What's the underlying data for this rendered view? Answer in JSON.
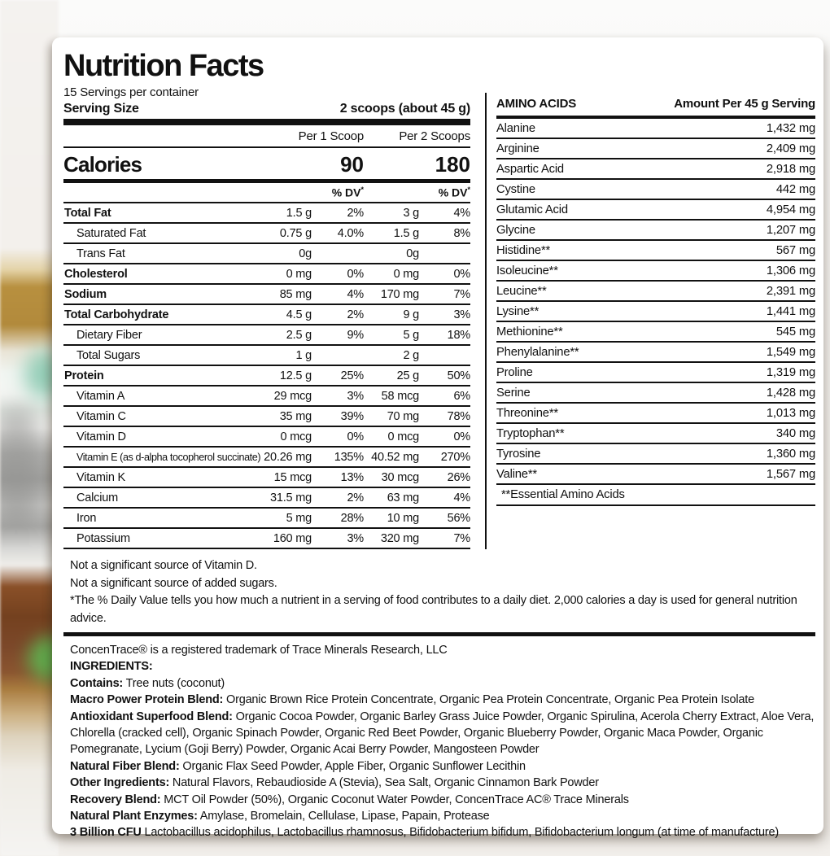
{
  "palette": {
    "card_bg": "#ffffff",
    "rule_color": "#111111",
    "text_color": "#111111",
    "bg_gold": "#b8903f",
    "bg_brown": "#7c482a",
    "bg_leaf": "#5fae4e"
  },
  "label": {
    "title": "Nutrition Facts",
    "servings_per_container": "15 Servings per container",
    "serving_size_label": "Serving Size",
    "serving_size_value": "2 scoops (about 45 g)",
    "col1_header": "Per 1 Scoop",
    "col2_header": "Per 2 Scoops",
    "calories_label": "Calories",
    "calories_per_1_scoop": "90",
    "calories_per_2_scoops": "180",
    "dv_header": "% DV",
    "dv_star": "*",
    "nutrients": [
      {
        "name": "Total Fat",
        "bold": true,
        "indent": false,
        "a1": "1.5 g",
        "dv1": "2%",
        "a2": "3 g",
        "dv2": "4%"
      },
      {
        "name": "Saturated Fat",
        "bold": false,
        "indent": true,
        "a1": "0.75 g",
        "dv1": "4.0%",
        "a2": "1.5 g",
        "dv2": "8%"
      },
      {
        "name": "Trans Fat",
        "bold": false,
        "indent": true,
        "a1": "0g",
        "dv1": "",
        "a2": "0g",
        "dv2": ""
      },
      {
        "name": "Cholesterol",
        "bold": true,
        "indent": false,
        "a1": "0 mg",
        "dv1": "0%",
        "a2": "0 mg",
        "dv2": "0%"
      },
      {
        "name": "Sodium",
        "bold": true,
        "indent": false,
        "a1": "85 mg",
        "dv1": "4%",
        "a2": "170 mg",
        "dv2": "7%"
      },
      {
        "name": "Total Carbohydrate",
        "bold": true,
        "indent": false,
        "a1": "4.5 g",
        "dv1": "2%",
        "a2": "9 g",
        "dv2": "3%"
      },
      {
        "name": "Dietary Fiber",
        "bold": false,
        "indent": true,
        "a1": "2.5 g",
        "dv1": "9%",
        "a2": "5 g",
        "dv2": "18%"
      },
      {
        "name": "Total Sugars",
        "bold": false,
        "indent": true,
        "a1": "1 g",
        "dv1": "",
        "a2": "2 g",
        "dv2": ""
      },
      {
        "name": "Protein",
        "bold": true,
        "indent": false,
        "a1": "12.5 g",
        "dv1": "25%",
        "a2": "25 g",
        "dv2": "50%"
      },
      {
        "name": "Vitamin A",
        "bold": false,
        "indent": true,
        "a1": "29 mcg",
        "dv1": "3%",
        "a2": "58 mcg",
        "dv2": "6%"
      },
      {
        "name": "Vitamin C",
        "bold": false,
        "indent": true,
        "a1": "35 mg",
        "dv1": "39%",
        "a2": "70 mg",
        "dv2": "78%"
      },
      {
        "name": "Vitamin D",
        "bold": false,
        "indent": true,
        "a1": "0 mcg",
        "dv1": "0%",
        "a2": "0 mcg",
        "dv2": "0%"
      },
      {
        "name": "Vitamin E (as d-alpha tocopherol succinate)",
        "bold": false,
        "indent": true,
        "small": true,
        "a1": "20.26 mg",
        "dv1": "135%",
        "a2": "40.52 mg",
        "dv2": "270%"
      },
      {
        "name": "Vitamin K",
        "bold": false,
        "indent": true,
        "a1": "15 mcg",
        "dv1": "13%",
        "a2": "30 mcg",
        "dv2": "26%"
      },
      {
        "name": "Calcium",
        "bold": false,
        "indent": true,
        "a1": "31.5 mg",
        "dv1": "2%",
        "a2": "63 mg",
        "dv2": "4%"
      },
      {
        "name": "Iron",
        "bold": false,
        "indent": true,
        "a1": "5 mg",
        "dv1": "28%",
        "a2": "10 mg",
        "dv2": "56%"
      },
      {
        "name": "Potassium",
        "bold": false,
        "indent": true,
        "a1": "160 mg",
        "dv1": "3%",
        "a2": "320 mg",
        "dv2": "7%"
      }
    ],
    "amino": {
      "header": "AMINO ACIDS",
      "amount_header": "Amount Per 45 g Serving",
      "rows": [
        {
          "name": "Alanine",
          "value": "1,432 mg"
        },
        {
          "name": "Arginine",
          "value": "2,409 mg"
        },
        {
          "name": "Aspartic Acid",
          "value": "2,918 mg"
        },
        {
          "name": "Cystine",
          "value": "442 mg"
        },
        {
          "name": "Glutamic Acid",
          "value": "4,954 mg"
        },
        {
          "name": "Glycine",
          "value": "1,207 mg"
        },
        {
          "name": "Histidine**",
          "value": "567 mg"
        },
        {
          "name": "Isoleucine**",
          "value": "1,306 mg"
        },
        {
          "name": "Leucine**",
          "value": "2,391 mg"
        },
        {
          "name": "Lysine**",
          "value": "1,441 mg"
        },
        {
          "name": "Methionine**",
          "value": "545 mg"
        },
        {
          "name": "Phenylalanine**",
          "value": "1,549 mg"
        },
        {
          "name": "Proline",
          "value": "1,319 mg"
        },
        {
          "name": "Serine",
          "value": "1,428 mg"
        },
        {
          "name": "Threonine**",
          "value": "1,013 mg"
        },
        {
          "name": "Tryptophan**",
          "value": "340 mg"
        },
        {
          "name": "Tyrosine",
          "value": "1,360 mg"
        },
        {
          "name": "Valine**",
          "value": "1,567 mg"
        }
      ],
      "essential_note": "**Essential Amino Acids"
    },
    "footnotes": [
      "Not a significant source of Vitamin D.",
      "Not a significant source of added sugars.",
      "*The % Daily Value tells you how much a nutrient in a serving of food contributes to a daily diet. 2,000 calories a day is used for general nutrition advice."
    ],
    "ingredients": {
      "trademark_line": "ConcenTrace® is a registered trademark of Trace Minerals Research, LLC",
      "heading": "INGREDIENTS:",
      "lines": [
        {
          "b": "Contains:",
          "t": " Tree nuts (coconut)"
        },
        {
          "b": "Macro Power Protein Blend:",
          "t": " Organic Brown Rice Protein Concentrate, Organic Pea Protein Concentrate, Organic Pea Protein Isolate"
        },
        {
          "b": "Antioxidant Superfood Blend:",
          "t": " Organic Cocoa Powder, Organic Barley Grass Juice Powder, Organic Spirulina, Acerola Cherry Extract, Aloe Vera, Chlorella (cracked cell), Organic Spinach Powder, Organic Red Beet Powder, Organic Blueberry Powder, Organic Maca Powder, Organic Pomegranate, Lycium (Goji Berry) Powder, Organic Acai Berry Powder, Mangosteen Powder"
        },
        {
          "b": "Natural Fiber Blend:",
          "t": " Organic Flax Seed Powder, Apple Fiber, Organic Sunflower Lecithin"
        },
        {
          "b": "Other Ingredients:",
          "t": " Natural Flavors, Rebaudioside A (Stevia), Sea Salt, Organic Cinnamon Bark Powder"
        },
        {
          "b": "Recovery Blend:",
          "t": " MCT Oil Powder (50%), Organic Coconut Water Powder, ConcenTrace AC® Trace Minerals"
        },
        {
          "b": "Natural Plant Enzymes:",
          "t": " Amylase, Bromelain, Cellulase, Lipase, Papain, Protease"
        },
        {
          "b": "3 Billion CFU",
          "t": " Lactobacillus acidophilus, Lactobacillus rhamnosus, Bifidobacterium bifidum, Bifidobacterium longum (at time of manufacture)"
        }
      ]
    }
  }
}
